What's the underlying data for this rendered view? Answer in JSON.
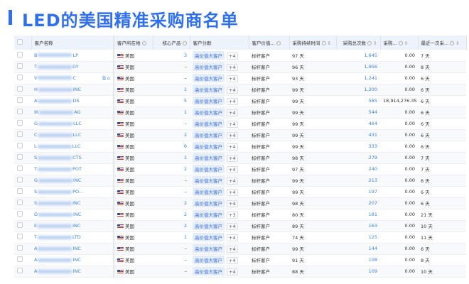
{
  "title": "LED的美国精准采购商名单",
  "headers": {
    "name": "客户名称",
    "location": "客户所在地",
    "core": "核心产品",
    "segment": "客户分群",
    "value": "客户价值...",
    "duration": "采购持续时间",
    "count": "采购总次数",
    "amount": "采购...",
    "last": "最近一次采..."
  },
  "location_label": "美国",
  "segment_label": "高价值大客户",
  "value_label": "标杆客户",
  "rows": [
    {
      "ns": "B",
      "ne": "LP",
      "core": "3",
      "plus": "+4",
      "dur": "97 天",
      "cnt": "1,645",
      "amt": "0.00",
      "last": "7 天"
    },
    {
      "ns": "T",
      "ne": "GY",
      "core": "–",
      "plus": "+4",
      "dur": "96 天",
      "cnt": "1,956",
      "amt": "0.00",
      "last": "8 天"
    },
    {
      "ns": "V",
      "ne": "C",
      "core": "–",
      "plus": "+4",
      "dur": "93 天",
      "cnt": "1,241",
      "amt": "0.00",
      "last": "6 天"
    },
    {
      "ns": "H",
      "ne": "INC",
      "core": "1",
      "plus": "+4",
      "dur": "99 天",
      "cnt": "1,200",
      "amt": "0.00",
      "last": "6 天"
    },
    {
      "ns": "A",
      "ne": "DS",
      "core": "5",
      "plus": "+4",
      "dur": "99 天",
      "cnt": "585",
      "amt": "18,914,276.35",
      "last": "6 天"
    },
    {
      "ns": "IK",
      "ne": "AG",
      "core": "1",
      "plus": "+4",
      "dur": "99 天",
      "cnt": "544",
      "amt": "0.00",
      "last": "6 天"
    },
    {
      "ns": "G",
      "ne": "LLC",
      "core": "–",
      "plus": "+4",
      "dur": "99 天",
      "cnt": "464",
      "amt": "0.00",
      "last": "6 天"
    },
    {
      "ns": "C",
      "ne": "LLC",
      "core": "2",
      "plus": "+4",
      "dur": "99 天",
      "cnt": "431",
      "amt": "0.00",
      "last": "6 天"
    },
    {
      "ns": "L",
      "ne": "LLC",
      "core": "6",
      "plus": "+4",
      "dur": "99 天",
      "cnt": "333",
      "amt": "0.00",
      "last": "6 天"
    },
    {
      "ns": "S",
      "ne": "CTS",
      "core": "1",
      "plus": "+4",
      "dur": "98 天",
      "cnt": "279",
      "amt": "0.00",
      "last": "7 天"
    },
    {
      "ns": "T",
      "ne": "POT",
      "core": "2",
      "plus": "+4",
      "dur": "97 天",
      "cnt": "240",
      "amt": "0.00",
      "last": "7 天"
    },
    {
      "ns": "G",
      "ne": "INC",
      "core": "–",
      "plus": "+4",
      "dur": "99 天",
      "cnt": "213",
      "amt": "0.00",
      "last": "6 天"
    },
    {
      "ns": "S",
      "ne": "PO...",
      "core": "–",
      "plus": "+4",
      "dur": "99 天",
      "cnt": "197",
      "amt": "0.00",
      "last": "6 天"
    },
    {
      "ns": "S",
      "ne": "INC",
      "core": "2",
      "plus": "+4",
      "dur": "98 天",
      "cnt": "207",
      "amt": "0.00",
      "last": "6 天"
    },
    {
      "ns": "D",
      "ne": "INC",
      "core": "2",
      "plus": "+3",
      "dur": "80 天",
      "cnt": "181",
      "amt": "0.00",
      "last": "21 天"
    },
    {
      "ns": "E",
      "ne": "INC",
      "core": "2",
      "plus": "+4",
      "dur": "89 天",
      "cnt": "163",
      "amt": "0.00",
      "last": "10 天"
    },
    {
      "ns": "T",
      "ne": "LTD",
      "core": "1",
      "plus": "+4",
      "dur": "74 天",
      "cnt": "125",
      "amt": "0.00",
      "last": "11 天"
    },
    {
      "ns": "A",
      "ne": "INC",
      "core": "–",
      "plus": "+4",
      "dur": "99 天",
      "cnt": "144",
      "amt": "0.00",
      "last": "6 天"
    },
    {
      "ns": "A",
      "ne": "INC",
      "core": "–",
      "plus": "+4",
      "dur": "91 天",
      "cnt": "108",
      "amt": "0.00",
      "last": "8 天"
    },
    {
      "ns": "A",
      "ne": "INC",
      "core": "–",
      "plus": "+4",
      "dur": "88 天",
      "cnt": "109",
      "amt": "0.00",
      "last": "10 天"
    }
  ]
}
